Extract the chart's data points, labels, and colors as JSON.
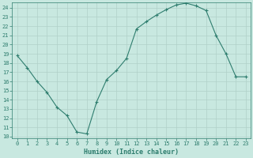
{
  "xlabel": "Humidex (Indice chaleur)",
  "x": [
    0,
    1,
    2,
    3,
    4,
    5,
    6,
    7,
    8,
    9,
    10,
    11,
    12,
    13,
    14,
    15,
    16,
    17,
    18,
    19,
    20,
    21,
    22,
    23
  ],
  "y": [
    18.8,
    17.5,
    16.0,
    14.8,
    13.2,
    12.3,
    10.5,
    10.3,
    13.8,
    16.2,
    17.2,
    18.5,
    21.7,
    22.5,
    23.2,
    23.8,
    24.3,
    24.5,
    24.2,
    23.7,
    21.0,
    19.0,
    16.5,
    16.5
  ],
  "line_color": "#2e7d6e",
  "marker": "+",
  "bg_color": "#c8e8e0",
  "grid_color": "#b0d0c8",
  "tick_color": "#2e7d6e",
  "label_color": "#2e7d6e",
  "xlim": [
    -0.5,
    23.5
  ],
  "ylim": [
    9.8,
    24.6
  ],
  "yticks": [
    10,
    11,
    12,
    13,
    14,
    15,
    16,
    17,
    18,
    19,
    20,
    21,
    22,
    23,
    24
  ],
  "xticks": [
    0,
    1,
    2,
    3,
    4,
    5,
    6,
    7,
    8,
    9,
    10,
    11,
    12,
    13,
    14,
    15,
    16,
    17,
    18,
    19,
    20,
    21,
    22,
    23
  ],
  "tick_fontsize": 5.0,
  "xlabel_fontsize": 6.0
}
